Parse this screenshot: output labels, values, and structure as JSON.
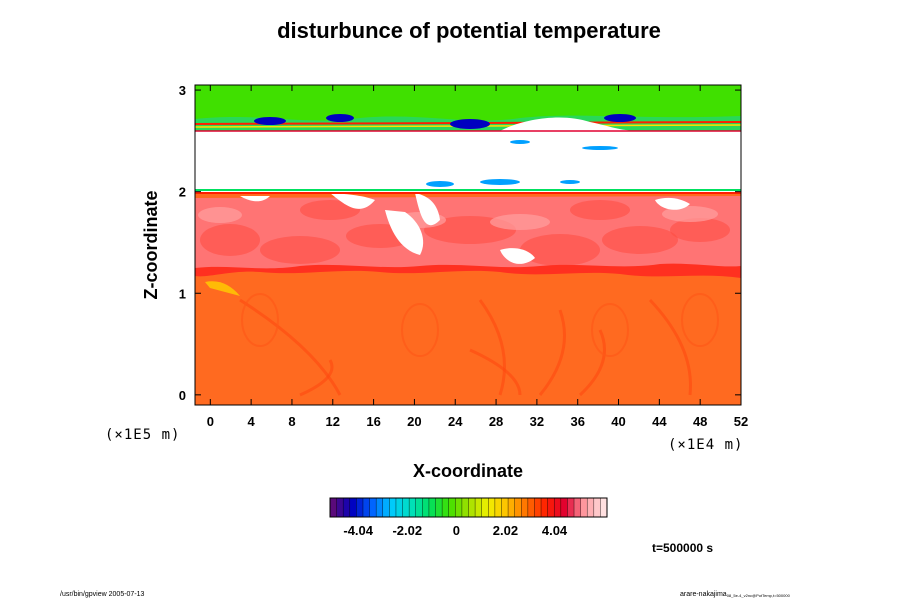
{
  "chart_data": {
    "type": "heatmap",
    "title": "disturbunce of potential temperature",
    "xlabel": "X-coordinate",
    "ylabel": "Z-coordinate",
    "x_unit": "(×1E4 m)",
    "y_unit": "(×1E5 m)",
    "xlim": [
      -1.5,
      52
    ],
    "ylim": [
      -0.1,
      3.05
    ],
    "x_ticks": [
      "0",
      "4",
      "8",
      "12",
      "16",
      "20",
      "24",
      "28",
      "32",
      "36",
      "40",
      "44",
      "48",
      "52"
    ],
    "y_ticks": [
      "0",
      "1",
      "2",
      "3"
    ],
    "x_tick_values": [
      0,
      4,
      8,
      12,
      16,
      20,
      24,
      28,
      32,
      36,
      40,
      44,
      48,
      52
    ],
    "y_tick_values": [
      0,
      1,
      2,
      3
    ],
    "colorbar": {
      "tick_labels": [
        "-4.04",
        "-2.02",
        "0",
        "2.02",
        "4.04"
      ],
      "tick_values": [
        -4.04,
        -2.02,
        0,
        2.02,
        4.04
      ],
      "range": [
        -5.2,
        6.2
      ],
      "colors": [
        "#5a0a7a",
        "#0000c0",
        "#0060ff",
        "#00c8ff",
        "#00e0c0",
        "#00e060",
        "#40e000",
        "#a0e000",
        "#f0f000",
        "#ffc000",
        "#ff7000",
        "#ff2000",
        "#e00030",
        "#ff9aa0",
        "#ffe0e0"
      ]
    },
    "layers": [
      {
        "z_range": [
          -0.1,
          1.2
        ],
        "color": "#ff6a20",
        "description": "lower layer, nearly uniform"
      },
      {
        "z_range": [
          1.2,
          2.0
        ],
        "color": "#ff7070",
        "description": "turbulent mixed layer"
      },
      {
        "z_range": [
          2.0,
          2.62
        ],
        "color": "#ffffff",
        "description": "blank band"
      },
      {
        "z_range": [
          2.62,
          3.05
        ],
        "color": "#40e000",
        "description": "upper layer"
      }
    ],
    "time_label": "t=500000 s"
  },
  "footer": {
    "left": "/usr/bin/gpview 2005-07-13",
    "right_main": "arare-nakajima",
    "right_sub": "08_5e-4_v2nc@PotTemp,t=500000"
  }
}
